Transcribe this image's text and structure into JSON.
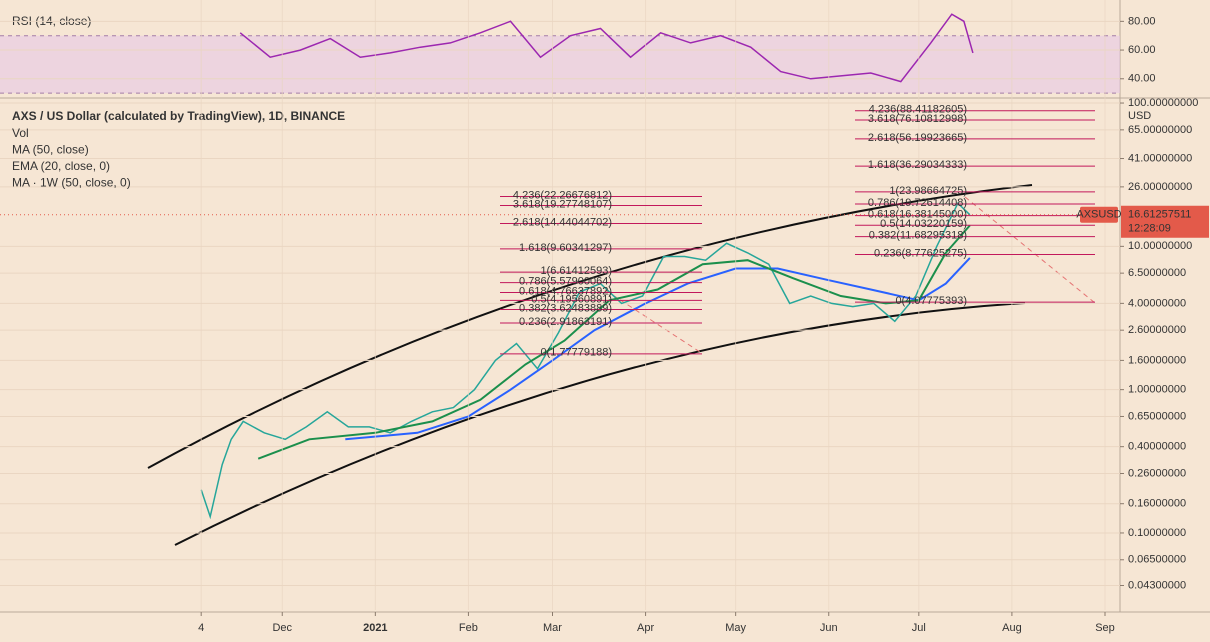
{
  "chart_data": [
    {
      "type": "line",
      "title": "RSI (14, close)",
      "ylim": [
        27.3,
        89.3
      ],
      "yticks": [
        {
          "value": 80,
          "label": "80.00"
        },
        {
          "value": 60,
          "label": "60.00"
        },
        {
          "value": 40,
          "label": "40.00"
        }
      ],
      "band": [
        30,
        70
      ],
      "band_color": "#e8c8e6",
      "series": [
        {
          "color": "#9c27b0",
          "x": [
            "2021-11-17",
            "2020-11-17",
            "2020-11-27",
            "2020-12-07",
            "2020-12-17",
            "2020-12-27",
            "2021-01-06",
            "2021-01-16",
            "2021-01-26",
            "2021-02-05",
            "2021-02-15",
            "2021-02-25",
            "2021-03-07",
            "2021-03-17",
            "2021-03-27",
            "2021-04-06",
            "2021-04-16",
            "2021-04-26",
            "2021-05-06",
            "2021-05-16",
            "2021-05-26",
            "2021-06-05",
            "2021-06-15",
            "2021-06-25",
            "2021-07-05",
            "2021-07-12",
            "2021-07-16",
            "2021-07-19"
          ],
          "values": [
            null,
            72,
            55,
            60,
            68,
            55,
            58,
            62,
            65,
            72,
            80,
            55,
            70,
            75,
            55,
            72,
            65,
            70,
            62,
            45,
            40,
            42,
            44,
            38,
            65,
            85,
            80,
            58
          ]
        }
      ]
    },
    {
      "type": "line",
      "title": "AXS / US Dollar (calculated by TradingView), 1D, BINANCE",
      "legend": [
        "Vol",
        "MA (50, close)",
        "EMA (20, close, 0)",
        "MA · 1W (50, close, 0)"
      ],
      "log_scale": true,
      "ylim": [
        0.029,
        105
      ],
      "yticks": [
        {
          "value": 100,
          "label": "100.00000000"
        },
        {
          "value": 65,
          "label": "65.00000000"
        },
        {
          "value": 41,
          "label": "41.00000000"
        },
        {
          "value": 26,
          "label": "26.00000000"
        },
        {
          "value": 10,
          "label": "10.00000000"
        },
        {
          "value": 6.5,
          "label": "6.50000000"
        },
        {
          "value": 4,
          "label": "4.00000000"
        },
        {
          "value": 2.6,
          "label": "2.60000000"
        },
        {
          "value": 1.6,
          "label": "1.60000000"
        },
        {
          "value": 1,
          "label": "1.00000000"
        },
        {
          "value": 0.65,
          "label": "0.65000000"
        },
        {
          "value": 0.4,
          "label": "0.40000000"
        },
        {
          "value": 0.26,
          "label": "0.26000000"
        },
        {
          "value": 0.16,
          "label": "0.16000000"
        },
        {
          "value": 0.1,
          "label": "0.10000000"
        },
        {
          "value": 0.065,
          "label": "0.06500000"
        },
        {
          "value": 0.043,
          "label": "0.04300000"
        }
      ],
      "currency": "USD",
      "xlim": [
        "2020-08-29",
        "2021-09-06"
      ],
      "xticks": [
        {
          "value": "2020-11-04",
          "label": "4"
        },
        {
          "value": "2020-12-01",
          "label": "Dec"
        },
        {
          "value": "2021-01-01",
          "label": "2021"
        },
        {
          "value": "2021-02-01",
          "label": "Feb"
        },
        {
          "value": "2021-03-01",
          "label": "Mar"
        },
        {
          "value": "2021-04-01",
          "label": "Apr"
        },
        {
          "value": "2021-05-01",
          "label": "May"
        },
        {
          "value": "2021-06-01",
          "label": "Jun"
        },
        {
          "value": "2021-07-01",
          "label": "Jul"
        },
        {
          "value": "2021-08-01",
          "label": "Aug"
        },
        {
          "value": "2021-09-01",
          "label": "Sep"
        }
      ],
      "series": [
        {
          "color": "#26a69a",
          "x": [
            "2020-11-04",
            "2020-11-07",
            "2020-11-11",
            "2020-11-14",
            "2020-11-18",
            "2020-11-25",
            "2020-12-02",
            "2020-12-09",
            "2020-12-16",
            "2020-12-23",
            "2020-12-30",
            "2021-01-06",
            "2021-01-13",
            "2021-01-20",
            "2021-01-27",
            "2021-02-03",
            "2021-02-10",
            "2021-02-17",
            "2021-02-24",
            "2021-03-03",
            "2021-03-10",
            "2021-03-17",
            "2021-03-24",
            "2021-03-31",
            "2021-04-07",
            "2021-04-14",
            "2021-04-21",
            "2021-04-28",
            "2021-05-05",
            "2021-05-12",
            "2021-05-19",
            "2021-05-26",
            "2021-06-02",
            "2021-06-09",
            "2021-06-16",
            "2021-06-23",
            "2021-06-30",
            "2021-07-07",
            "2021-07-14",
            "2021-07-18"
          ],
          "values": [
            0.2,
            0.13,
            0.3,
            0.45,
            0.6,
            0.5,
            0.45,
            0.55,
            0.7,
            0.55,
            0.55,
            0.5,
            0.6,
            0.7,
            0.75,
            1.0,
            1.6,
            2.1,
            1.4,
            2.5,
            4.8,
            5.5,
            4.0,
            4.5,
            8.5,
            8.5,
            8.0,
            10.5,
            9.0,
            7.5,
            4.0,
            4.5,
            4.0,
            3.8,
            4.0,
            3.0,
            4.5,
            10,
            20,
            16.6
          ]
        },
        {
          "color": "#2962ff",
          "x": [
            "2020-12-22",
            "2021-01-15",
            "2021-02-01",
            "2021-02-15",
            "2021-03-01",
            "2021-03-15",
            "2021-04-01",
            "2021-04-15",
            "2021-05-01",
            "2021-05-15",
            "2021-06-01",
            "2021-06-15",
            "2021-07-01",
            "2021-07-10",
            "2021-07-18"
          ],
          "values": [
            0.45,
            0.5,
            0.65,
            1.0,
            1.6,
            2.6,
            4.0,
            5.5,
            7.0,
            7.0,
            5.8,
            5.0,
            4.2,
            5.5,
            8.3
          ]
        },
        {
          "color": "#1b8f4c",
          "x": [
            "2020-11-23",
            "2020-12-10",
            "2021-01-01",
            "2021-01-20",
            "2021-02-05",
            "2021-02-20",
            "2021-03-05",
            "2021-03-20",
            "2021-04-05",
            "2021-04-20",
            "2021-05-05",
            "2021-05-20",
            "2021-06-05",
            "2021-06-20",
            "2021-07-01",
            "2021-07-10",
            "2021-07-18"
          ],
          "values": [
            0.33,
            0.45,
            0.5,
            0.6,
            0.85,
            1.5,
            2.2,
            4.2,
            5.0,
            7.5,
            8.0,
            6.0,
            4.5,
            4.0,
            4.2,
            9,
            14
          ]
        }
      ],
      "last_price": {
        "value": 16.61257511,
        "label": "16.61257511"
      },
      "symbol": "AXSUSD",
      "countdown": "12:28:09",
      "fib_color": "#c2185b",
      "fib_levels": [
        [
          {
            "value": 88.41182605,
            "label": "4.236(88.41182605)"
          },
          {
            "value": 76.10812998,
            "label": "3.618(76.10812998)"
          },
          {
            "value": 56.19923665,
            "label": "2.618(56.19923665)"
          },
          {
            "value": 36.29034333,
            "label": "1.618(36.29034333)"
          },
          {
            "value": 23.98664725,
            "label": "1(23.98664725)"
          },
          {
            "value": 19.72614408,
            "label": "0.786(19.72614408)"
          },
          {
            "value": 16.38145,
            "label": "0.618(16.38145000)"
          },
          {
            "value": 14.03220159,
            "label": "0.5(14.03220159)"
          },
          {
            "value": 11.68295318,
            "label": "0.382(11.68295318)"
          },
          {
            "value": 8.77625275,
            "label": "0.236(8.77625275)"
          },
          {
            "value": 4.07775393,
            "label": "0(4.07775393)"
          }
        ],
        [
          {
            "value": 22.26676812,
            "label": "4.236(22.26676812)"
          },
          {
            "value": 19.27748107,
            "label": "3.618(19.27748107)"
          },
          {
            "value": 14.44044702,
            "label": "2.618(14.44044702)"
          },
          {
            "value": 9.60341297,
            "label": "1.618(9.60341297)"
          },
          {
            "value": 6.61412593,
            "label": "1(6.61412593)"
          },
          {
            "value": 5.57900064,
            "label": "0.786(5.57900064)"
          },
          {
            "value": 4.76637892,
            "label": "0.618(4.76637892)"
          },
          {
            "value": 4.19560891,
            "label": "0.5(4.19560891)"
          },
          {
            "value": 3.62483889,
            "label": "0.382(3.62483889)"
          },
          {
            "value": 2.91863191,
            "label": "0.236(2.91863191)"
          },
          {
            "value": 1.77779188,
            "label": "0(1.77779188)"
          }
        ]
      ]
    }
  ]
}
